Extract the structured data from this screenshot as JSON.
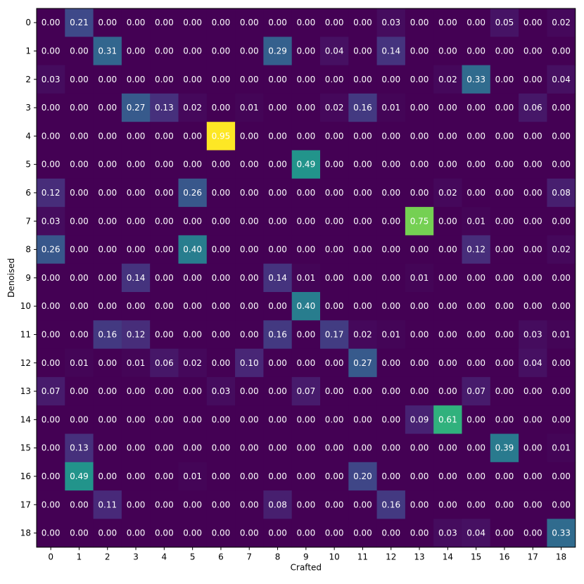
{
  "chart_data": {
    "type": "heatmap",
    "xlabel": "Crafted",
    "ylabel": "Denoised",
    "x_categories": [
      "0",
      "1",
      "2",
      "3",
      "4",
      "5",
      "6",
      "7",
      "8",
      "9",
      "10",
      "11",
      "12",
      "13",
      "14",
      "15",
      "16",
      "17",
      "18"
    ],
    "y_categories": [
      "0",
      "1",
      "2",
      "3",
      "4",
      "5",
      "6",
      "7",
      "8",
      "9",
      "10",
      "11",
      "12",
      "13",
      "14",
      "15",
      "16",
      "17",
      "18"
    ],
    "value_range": [
      0,
      0.95
    ],
    "colormap": [
      "#440154",
      "#482878",
      "#3e4989",
      "#31688e",
      "#26828e",
      "#1f9e89",
      "#35b779",
      "#6ece58",
      "#b5de2b",
      "#fde725"
    ],
    "label_color": "#ffffff",
    "values": [
      [
        0.0,
        0.21,
        0.0,
        0.0,
        0.0,
        0.0,
        0.0,
        0.0,
        0.0,
        0.0,
        0.0,
        0.0,
        0.03,
        0.0,
        0.0,
        0.0,
        0.05,
        0.0,
        0.02
      ],
      [
        0.0,
        0.0,
        0.31,
        0.0,
        0.0,
        0.0,
        0.0,
        0.0,
        0.29,
        0.0,
        0.04,
        0.0,
        0.14,
        0.0,
        0.0,
        0.0,
        0.0,
        0.0,
        0.0
      ],
      [
        0.03,
        0.0,
        0.0,
        0.0,
        0.0,
        0.0,
        0.0,
        0.0,
        0.0,
        0.0,
        0.0,
        0.0,
        0.0,
        0.0,
        0.02,
        0.33,
        0.0,
        0.0,
        0.04
      ],
      [
        0.0,
        0.0,
        0.0,
        0.27,
        0.13,
        0.02,
        0.0,
        0.01,
        0.0,
        0.0,
        0.02,
        0.16,
        0.01,
        0.0,
        0.0,
        0.0,
        0.0,
        0.06,
        0.0
      ],
      [
        0.0,
        0.0,
        0.0,
        0.0,
        0.0,
        0.0,
        0.95,
        0.0,
        0.0,
        0.0,
        0.0,
        0.0,
        0.0,
        0.0,
        0.0,
        0.0,
        0.0,
        0.0,
        0.0
      ],
      [
        0.0,
        0.0,
        0.0,
        0.0,
        0.0,
        0.0,
        0.0,
        0.0,
        0.0,
        0.49,
        0.0,
        0.0,
        0.0,
        0.0,
        0.0,
        0.0,
        0.0,
        0.0,
        0.0
      ],
      [
        0.12,
        0.0,
        0.0,
        0.0,
        0.0,
        0.26,
        0.0,
        0.0,
        0.0,
        0.0,
        0.0,
        0.0,
        0.0,
        0.0,
        0.02,
        0.0,
        0.0,
        0.0,
        0.08
      ],
      [
        0.03,
        0.0,
        0.0,
        0.0,
        0.0,
        0.0,
        0.0,
        0.0,
        0.0,
        0.0,
        0.0,
        0.0,
        0.0,
        0.75,
        0.0,
        0.01,
        0.0,
        0.0,
        0.0
      ],
      [
        0.26,
        0.0,
        0.0,
        0.0,
        0.0,
        0.4,
        0.0,
        0.0,
        0.0,
        0.0,
        0.0,
        0.0,
        0.0,
        0.0,
        0.0,
        0.12,
        0.0,
        0.0,
        0.02
      ],
      [
        0.0,
        0.0,
        0.0,
        0.14,
        0.0,
        0.0,
        0.0,
        0.0,
        0.14,
        0.01,
        0.0,
        0.0,
        0.0,
        0.01,
        0.0,
        0.0,
        0.0,
        0.0,
        0.0
      ],
      [
        0.0,
        0.0,
        0.0,
        0.0,
        0.0,
        0.0,
        0.0,
        0.0,
        0.0,
        0.4,
        0.0,
        0.0,
        0.0,
        0.0,
        0.0,
        0.0,
        0.0,
        0.0,
        0.0
      ],
      [
        0.0,
        0.0,
        0.16,
        0.12,
        0.0,
        0.0,
        0.0,
        0.0,
        0.16,
        0.0,
        0.17,
        0.02,
        0.01,
        0.0,
        0.0,
        0.0,
        0.0,
        0.03,
        0.01
      ],
      [
        0.0,
        0.01,
        0.0,
        0.01,
        0.06,
        0.02,
        0.0,
        0.1,
        0.0,
        0.0,
        0.0,
        0.27,
        0.0,
        0.0,
        0.0,
        0.0,
        0.0,
        0.04,
        0.0
      ],
      [
        0.07,
        0.0,
        0.0,
        0.0,
        0.0,
        0.0,
        0.03,
        0.0,
        0.0,
        0.07,
        0.0,
        0.0,
        0.0,
        0.0,
        0.0,
        0.07,
        0.0,
        0.0,
        0.0
      ],
      [
        0.0,
        0.0,
        0.0,
        0.0,
        0.0,
        0.0,
        0.0,
        0.0,
        0.0,
        0.0,
        0.0,
        0.0,
        0.0,
        0.09,
        0.61,
        0.0,
        0.0,
        0.0,
        0.0
      ],
      [
        0.0,
        0.13,
        0.0,
        0.0,
        0.0,
        0.0,
        0.0,
        0.0,
        0.0,
        0.0,
        0.0,
        0.0,
        0.0,
        0.0,
        0.0,
        0.0,
        0.39,
        0.0,
        0.01
      ],
      [
        0.0,
        0.49,
        0.0,
        0.0,
        0.0,
        0.01,
        0.0,
        0.0,
        0.0,
        0.0,
        0.0,
        0.2,
        0.0,
        0.0,
        0.0,
        0.0,
        0.0,
        0.0,
        0.0
      ],
      [
        0.0,
        0.0,
        0.11,
        0.0,
        0.0,
        0.0,
        0.0,
        0.0,
        0.08,
        0.0,
        0.0,
        0.0,
        0.16,
        0.0,
        0.0,
        0.0,
        0.0,
        0.0,
        0.0
      ],
      [
        0.0,
        0.0,
        0.0,
        0.0,
        0.0,
        0.0,
        0.0,
        0.0,
        0.0,
        0.0,
        0.0,
        0.0,
        0.0,
        0.0,
        0.03,
        0.04,
        0.0,
        0.0,
        0.33
      ]
    ]
  }
}
